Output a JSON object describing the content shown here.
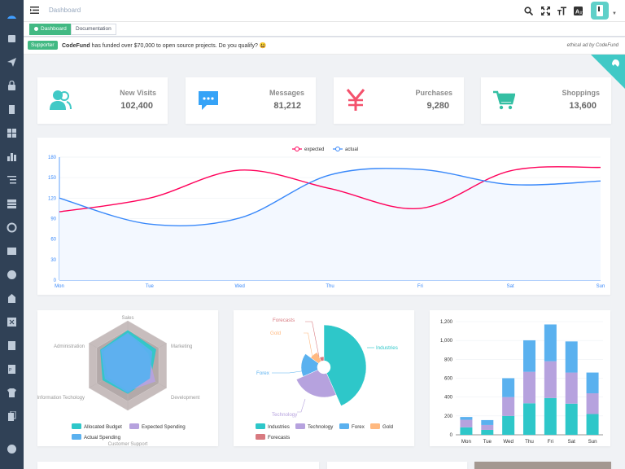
{
  "sidebar": {
    "icons": [
      "dashboard-icon",
      "documentation-icon",
      "guide-icon",
      "permission-icon",
      "icons-icon",
      "components-icon",
      "charts-icon",
      "nested-icon",
      "table-icon",
      "example-icon",
      "tab-icon",
      "error-icon",
      "error-log-icon",
      "excel-icon",
      "zip-icon",
      "pdf-icon",
      "theme-icon",
      "clipboard-icon",
      "i18n-icon"
    ]
  },
  "topbar": {
    "breadcrumb": "Dashboard"
  },
  "tags": {
    "dashboard": "Dashboard",
    "documentation": "Documentation"
  },
  "ad": {
    "badge": "Supporter",
    "brand": "CodeFund",
    "text": "has funded over $70,000 to open source projects. Do you qualify? 😃",
    "credit": "ethical ad by CodeFund"
  },
  "stats": [
    {
      "label": "New Visits",
      "value": "102,400",
      "icon": "users-icon",
      "color": "#40c9c6"
    },
    {
      "label": "Messages",
      "value": "81,212",
      "icon": "message-icon",
      "color": "#36a3f7"
    },
    {
      "label": "Purchases",
      "value": "9,280",
      "icon": "money-icon",
      "color": "#f4516c"
    },
    {
      "label": "Shoppings",
      "value": "13,600",
      "icon": "shopping-icon",
      "color": "#34bfa3"
    }
  ],
  "chart_data": [
    {
      "type": "line",
      "categories": [
        "Mon",
        "Tue",
        "Wed",
        "Thu",
        "Fri",
        "Sat",
        "Sun"
      ],
      "ylim": [
        0,
        180
      ],
      "yticks": [
        0,
        30,
        60,
        90,
        120,
        150,
        180
      ],
      "series": [
        {
          "name": "expected",
          "color": "#ff005a",
          "values": [
            100,
            120,
            161,
            134,
            105,
            160,
            165
          ]
        },
        {
          "name": "actual",
          "color": "#3888fa",
          "values": [
            120,
            82,
            91,
            154,
            162,
            140,
            145
          ]
        }
      ]
    },
    {
      "type": "radar",
      "indicators": [
        "Sales",
        "Administration",
        "Information Techology",
        "Customer Support",
        "Development",
        "Marketing"
      ],
      "series": [
        {
          "name": "Allocated Budget",
          "color": "#2ec7c9"
        },
        {
          "name": "Expected Spending",
          "color": "#b6a2de"
        },
        {
          "name": "Actual Spending",
          "color": "#5ab1ef"
        }
      ]
    },
    {
      "type": "pie",
      "series": [
        {
          "name": "Industries",
          "color": "#2ec7c9"
        },
        {
          "name": "Technology",
          "color": "#b6a2de"
        },
        {
          "name": "Forex",
          "color": "#5ab1ef"
        },
        {
          "name": "Gold",
          "color": "#ffb980"
        },
        {
          "name": "Forecasts",
          "color": "#d87a80"
        }
      ]
    },
    {
      "type": "bar",
      "categories": [
        "Mon",
        "Tue",
        "Wed",
        "Thu",
        "Fri",
        "Sat",
        "Sun"
      ],
      "ylim": [
        0,
        1200
      ],
      "yticks": [
        "0",
        "200",
        "400",
        "600",
        "800",
        "1,000",
        "1,200"
      ],
      "series": [
        {
          "name": "Industries",
          "color": "#2ec7c9",
          "values": [
            79,
            52,
            200,
            334,
            390,
            330,
            220
          ]
        },
        {
          "name": "Technology",
          "color": "#b6a2de",
          "values": [
            80,
            52,
            200,
            334,
            390,
            330,
            220
          ]
        },
        {
          "name": "Forex",
          "color": "#5ab1ef",
          "values": [
            30,
            52,
            200,
            334,
            390,
            330,
            220
          ]
        }
      ]
    }
  ]
}
